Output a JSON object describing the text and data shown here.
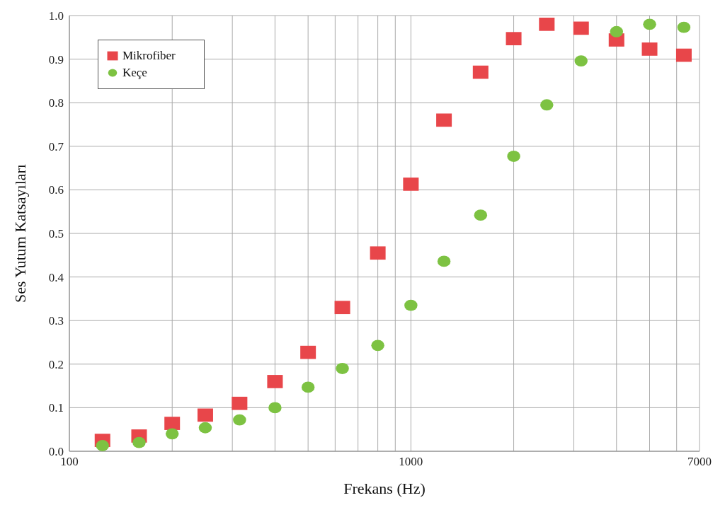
{
  "chart_data": {
    "type": "scatter",
    "xlabel": "Frekans (Hz)",
    "ylabel": "Ses Yutum Katsayıları",
    "x": [
      125,
      160,
      200,
      250,
      315,
      400,
      500,
      630,
      800,
      1000,
      1250,
      1600,
      2000,
      2500,
      3150,
      4000,
      5000,
      6300
    ],
    "series": [
      {
        "name": "Mikrofiber",
        "color": "#e8464a",
        "marker": "square",
        "values": [
          0.025,
          0.035,
          0.064,
          0.083,
          0.11,
          0.16,
          0.227,
          0.33,
          0.455,
          0.613,
          0.76,
          0.87,
          0.947,
          0.98,
          0.971,
          0.944,
          0.923,
          0.909
        ]
      },
      {
        "name": "Keçe",
        "color": "#7dc242",
        "marker": "circle",
        "values": [
          0.013,
          0.02,
          0.04,
          0.054,
          0.072,
          0.1,
          0.147,
          0.19,
          0.243,
          0.335,
          0.436,
          0.542,
          0.677,
          0.795,
          0.896,
          0.963,
          0.98,
          0.973
        ]
      }
    ],
    "log": "x",
    "xlim": [
      100,
      7000
    ],
    "xticks": [
      100,
      {
        "value": 200,
        "label": null
      },
      {
        "value": 300,
        "label": null
      },
      {
        "value": 400,
        "label": null
      },
      {
        "value": 500,
        "label": null
      },
      {
        "value": 600,
        "label": null
      },
      {
        "value": 700,
        "label": null
      },
      {
        "value": 800,
        "label": null
      },
      {
        "value": 900,
        "label": null
      },
      1000,
      {
        "value": 2000,
        "label": null
      },
      {
        "value": 3000,
        "label": null
      },
      {
        "value": 4000,
        "label": null
      },
      {
        "value": 5000,
        "label": null
      },
      {
        "value": 6000,
        "label": null
      },
      7000
    ],
    "ylim": [
      0,
      1
    ],
    "yticks": [
      {
        "value": 0,
        "label": "0.0"
      },
      {
        "value": 0.1,
        "label": "0.1"
      },
      {
        "value": 0.2,
        "label": "0.2"
      },
      {
        "value": 0.3,
        "label": "0.3"
      },
      {
        "value": 0.4,
        "label": "0.4"
      },
      {
        "value": 0.5,
        "label": "0.5"
      },
      {
        "value": 0.6,
        "label": "0.6"
      },
      {
        "value": 0.7,
        "label": "0.7"
      },
      {
        "value": 0.8,
        "label": "0.8"
      },
      {
        "value": 0.9,
        "label": "0.9"
      },
      {
        "value": 1,
        "label": "1.0"
      }
    ],
    "grid": true,
    "legend": "top left"
  }
}
